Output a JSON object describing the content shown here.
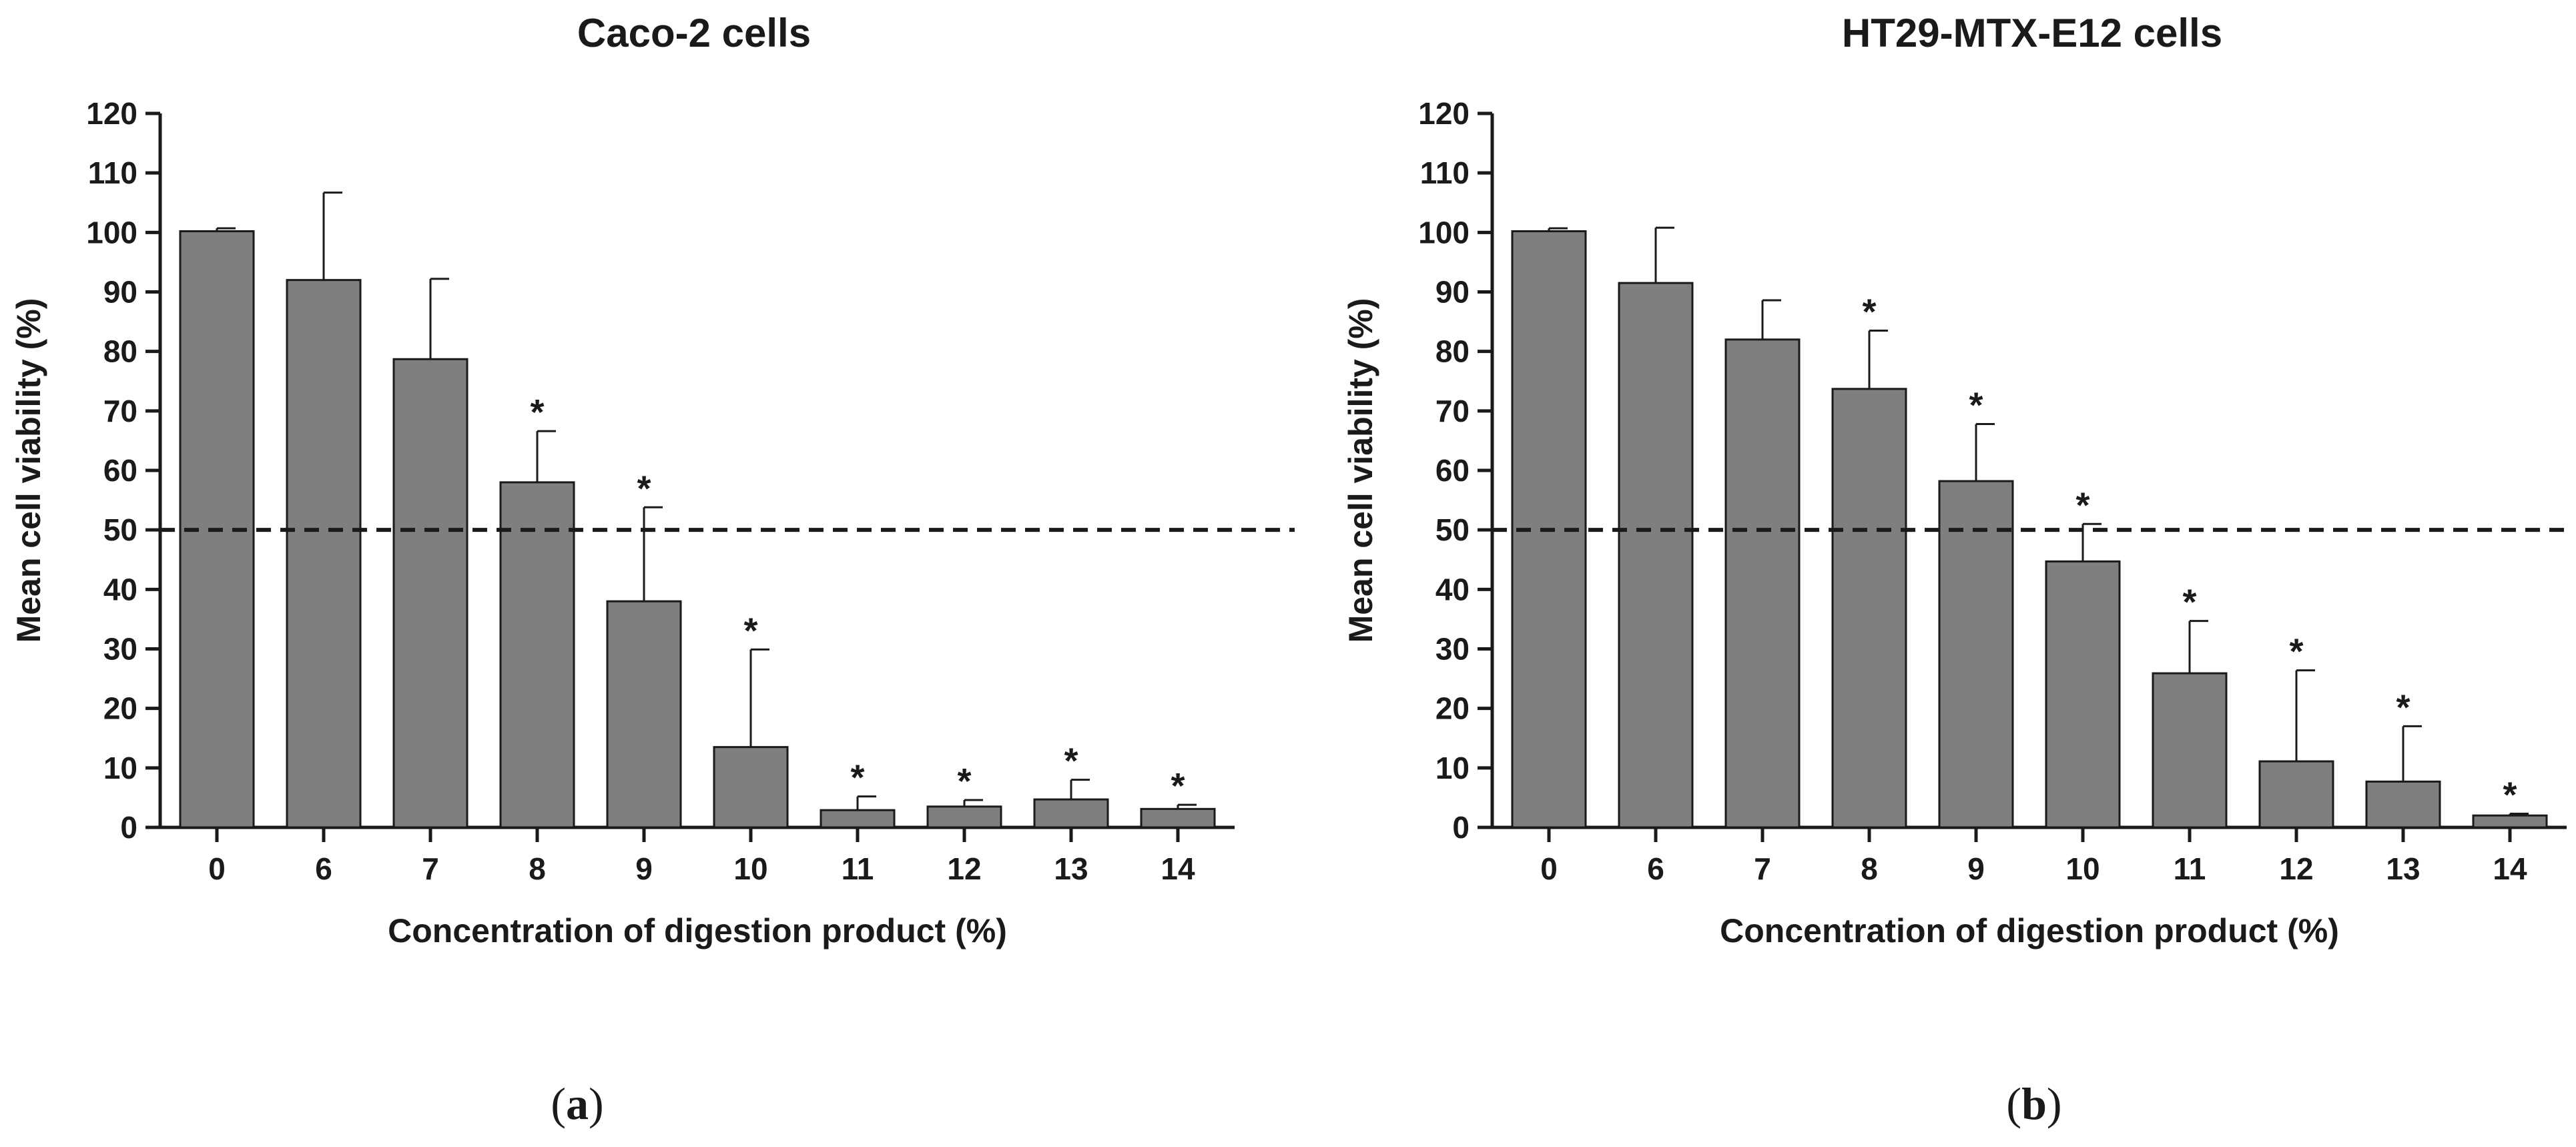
{
  "chart_data": [
    {
      "type": "bar",
      "title": "Caco-2  cells",
      "xlabel": "Concentration of digestion product (%)",
      "ylabel": "Mean cell viability (%)",
      "ylim": [
        0,
        120
      ],
      "yticks": [
        0,
        10,
        20,
        30,
        40,
        50,
        60,
        70,
        80,
        90,
        100,
        110,
        120
      ],
      "categories": [
        "0",
        "6",
        "7",
        "8",
        "9",
        "10",
        "11",
        "12",
        "13",
        "14"
      ],
      "values": [
        100.2,
        92,
        78.7,
        58,
        38,
        13.5,
        2.9,
        3.5,
        4.7,
        3.1
      ],
      "error_upper": [
        0.5,
        14.7,
        13.5,
        8.6,
        15.8,
        16.4,
        2.3,
        1.1,
        3.3,
        0.7
      ],
      "significant": [
        false,
        false,
        false,
        true,
        true,
        true,
        true,
        true,
        true,
        true
      ],
      "significance_marker": "*",
      "reference_line": 50,
      "bar_color": "#7f7f7f",
      "panel_label": [
        "(",
        "a",
        ")"
      ]
    },
    {
      "type": "bar",
      "title": "HT29-MTX-E12 cells",
      "xlabel": "Concentration of digestion product (%)",
      "ylabel": "Mean cell viability (%)",
      "ylim": [
        0,
        120
      ],
      "yticks": [
        0,
        10,
        20,
        30,
        40,
        50,
        60,
        70,
        80,
        90,
        100,
        110,
        120
      ],
      "categories": [
        "0",
        "6",
        "7",
        "8",
        "9",
        "10",
        "11",
        "12",
        "13",
        "14"
      ],
      "values": [
        100.2,
        91.5,
        82,
        73.7,
        58.2,
        44.7,
        25.9,
        11.1,
        7.7,
        2
      ],
      "error_upper": [
        0.5,
        9.3,
        6.6,
        9.8,
        9.6,
        6.3,
        8.8,
        15.3,
        9.3,
        0.3
      ],
      "significant": [
        false,
        false,
        false,
        true,
        true,
        true,
        true,
        true,
        true,
        true
      ],
      "significance_marker": "*",
      "reference_line": 50,
      "bar_color": "#7f7f7f",
      "panel_label": [
        "(",
        "b",
        ")"
      ]
    }
  ]
}
